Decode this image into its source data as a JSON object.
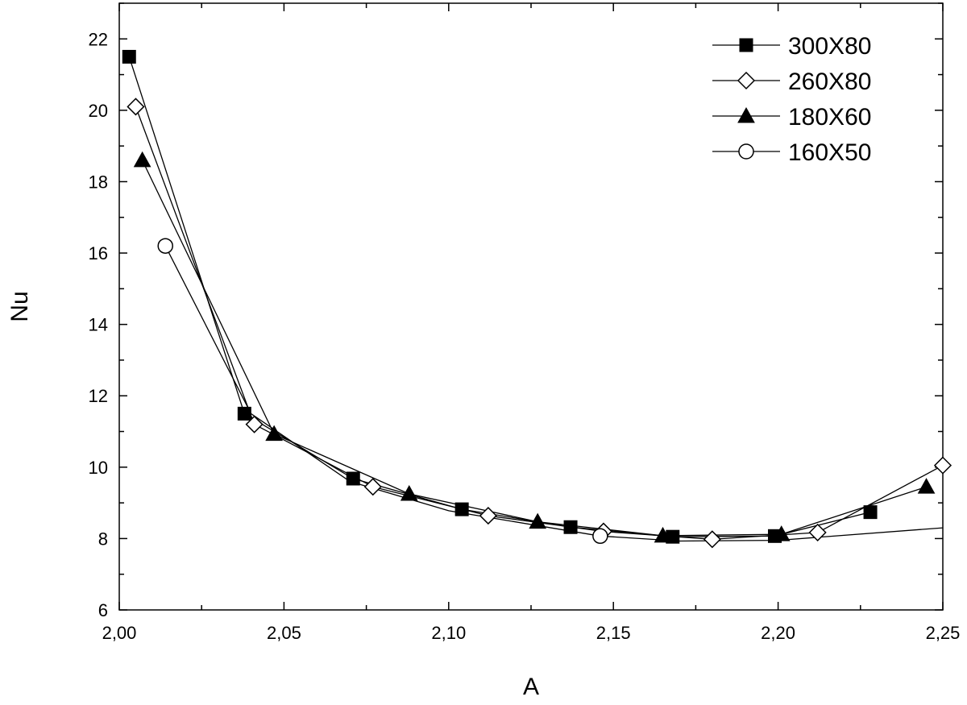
{
  "chart_data": {
    "type": "line",
    "xlabel": "A",
    "ylabel": "Nu",
    "xlim": [
      2.0,
      2.25
    ],
    "ylim": [
      6,
      23
    ],
    "x_ticks": [
      "2,00",
      "2,05",
      "2,10",
      "2,15",
      "2,20",
      "2,25"
    ],
    "x_tick_values": [
      2.0,
      2.05,
      2.1,
      2.15,
      2.2,
      2.25
    ],
    "y_ticks": [
      "6",
      "8",
      "10",
      "12",
      "14",
      "16",
      "18",
      "20",
      "22"
    ],
    "y_tick_values": [
      6,
      8,
      10,
      12,
      14,
      16,
      18,
      20,
      22
    ],
    "grid": false,
    "legend_position": "top-right",
    "series": [
      {
        "name": "300X80",
        "marker": "filled-square",
        "x": [
          2.003,
          2.038,
          2.071,
          2.104,
          2.137,
          2.168,
          2.199,
          2.228
        ],
        "y": [
          21.5,
          11.5,
          9.68,
          8.82,
          8.32,
          8.05,
          8.07,
          8.74
        ]
      },
      {
        "name": "260X80",
        "marker": "open-diamond",
        "x": [
          2.005,
          2.041,
          2.077,
          2.112,
          2.147,
          2.18,
          2.212,
          2.25
        ],
        "y": [
          20.1,
          11.2,
          9.45,
          8.64,
          8.2,
          7.98,
          8.17,
          10.05
        ]
      },
      {
        "name": "180X60",
        "marker": "filled-triangle",
        "x": [
          2.007,
          2.047,
          2.088,
          2.127,
          2.165,
          2.201,
          2.245
        ],
        "y": [
          18.6,
          10.93,
          9.25,
          8.47,
          8.08,
          8.12,
          9.45
        ]
      },
      {
        "name": "160X50",
        "marker": "open-circle",
        "x": [
          2.014,
          2.146
        ],
        "y": [
          16.2,
          8.07
        ],
        "curve_x": [
          2.014,
          2.04,
          2.07,
          2.1,
          2.146,
          2.17,
          2.2,
          2.25
        ],
        "curve_y": [
          16.2,
          11.5,
          9.6,
          8.78,
          8.07,
          7.93,
          7.95,
          8.3
        ]
      }
    ]
  }
}
